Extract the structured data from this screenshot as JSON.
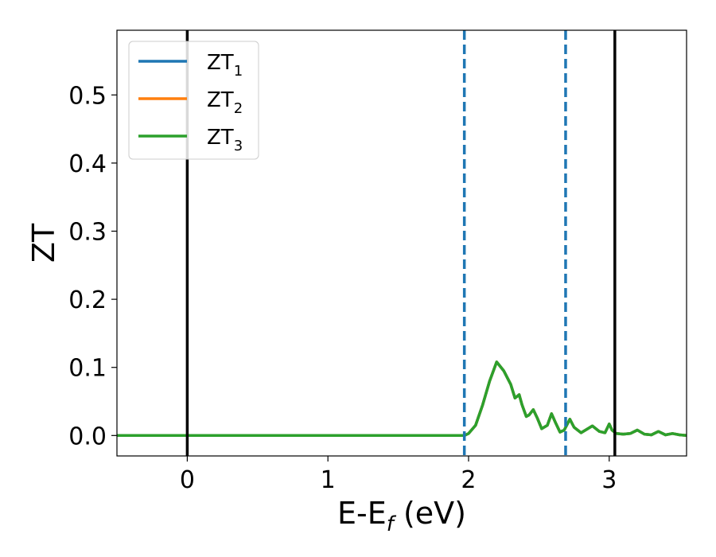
{
  "chart_data": {
    "type": "line",
    "title": "",
    "xlabel": "E-E",
    "xlabel_sub": "f",
    "xlabel_unit": " (eV)",
    "ylabel": "ZT",
    "xlim": [
      -0.5,
      3.55
    ],
    "ylim": [
      -0.03,
      0.595
    ],
    "xticks": [
      0,
      1,
      2,
      3
    ],
    "xtick_labels": [
      "0",
      "1",
      "2",
      "3"
    ],
    "yticks": [
      0.0,
      0.1,
      0.2,
      0.3,
      0.4,
      0.5
    ],
    "ytick_labels": [
      "0.0",
      "0.1",
      "0.2",
      "0.3",
      "0.4",
      "0.5"
    ],
    "grid": false,
    "legend_position": "top-left",
    "series": [
      {
        "name": "ZT",
        "name_sub": "1",
        "color": "#1f77b4",
        "x": [
          -0.5,
          0.0,
          1.0,
          1.9,
          1.97,
          2.0,
          2.05,
          2.1,
          2.15,
          2.2,
          2.25,
          2.3,
          2.33,
          2.36,
          2.38,
          2.41,
          2.43,
          2.46,
          2.49,
          2.52,
          2.56,
          2.59,
          2.62,
          2.65,
          2.68,
          2.72,
          2.75,
          2.8,
          2.88,
          2.93,
          2.97,
          3.0,
          3.02,
          3.05,
          3.1,
          3.15,
          3.2,
          3.25,
          3.3,
          3.35,
          3.4,
          3.45,
          3.5,
          3.55
        ],
        "y": [
          0.0,
          0.0,
          0.0,
          0.0,
          0.0,
          0.003,
          0.015,
          0.045,
          0.08,
          0.108,
          0.095,
          0.075,
          0.055,
          0.06,
          0.045,
          0.028,
          0.03,
          0.038,
          0.025,
          0.01,
          0.015,
          0.032,
          0.018,
          0.005,
          0.008,
          0.024,
          0.012,
          0.004,
          0.014,
          0.006,
          0.004,
          0.017,
          0.008,
          0.003,
          0.002,
          0.003,
          0.008,
          0.002,
          0.001,
          0.006,
          0.001,
          0.003,
          0.001,
          0.0
        ]
      },
      {
        "name": "ZT",
        "name_sub": "2",
        "color": "#ff7f0e",
        "x": [
          -0.5,
          0.0,
          1.0,
          1.9,
          1.97,
          2.0,
          2.05,
          2.1,
          2.15,
          2.2,
          2.25,
          2.3,
          2.33,
          2.36,
          2.38,
          2.41,
          2.43,
          2.46,
          2.49,
          2.52,
          2.56,
          2.59,
          2.62,
          2.65,
          2.68,
          2.72,
          2.75,
          2.8,
          2.88,
          2.93,
          2.97,
          3.0,
          3.02,
          3.05,
          3.1,
          3.15,
          3.2,
          3.25,
          3.3,
          3.35,
          3.4,
          3.45,
          3.5,
          3.55
        ],
        "y": [
          0.0,
          0.0,
          0.0,
          0.0,
          0.0,
          0.003,
          0.015,
          0.045,
          0.08,
          0.108,
          0.095,
          0.075,
          0.055,
          0.06,
          0.045,
          0.028,
          0.03,
          0.038,
          0.025,
          0.01,
          0.015,
          0.032,
          0.018,
          0.005,
          0.008,
          0.024,
          0.012,
          0.004,
          0.014,
          0.006,
          0.004,
          0.017,
          0.008,
          0.003,
          0.002,
          0.003,
          0.008,
          0.002,
          0.001,
          0.006,
          0.001,
          0.003,
          0.001,
          0.0
        ]
      },
      {
        "name": "ZT",
        "name_sub": "3",
        "color": "#2ca02c",
        "x": [
          -0.5,
          0.0,
          1.0,
          1.9,
          1.97,
          2.0,
          2.05,
          2.1,
          2.15,
          2.2,
          2.25,
          2.3,
          2.33,
          2.36,
          2.38,
          2.41,
          2.43,
          2.46,
          2.49,
          2.52,
          2.56,
          2.59,
          2.62,
          2.65,
          2.68,
          2.72,
          2.75,
          2.8,
          2.88,
          2.93,
          2.97,
          3.0,
          3.02,
          3.05,
          3.1,
          3.15,
          3.2,
          3.25,
          3.3,
          3.35,
          3.4,
          3.45,
          3.5,
          3.55
        ],
        "y": [
          0.0,
          0.0,
          0.0,
          0.0,
          0.0,
          0.003,
          0.015,
          0.045,
          0.08,
          0.108,
          0.095,
          0.075,
          0.055,
          0.06,
          0.045,
          0.028,
          0.03,
          0.038,
          0.025,
          0.01,
          0.015,
          0.032,
          0.018,
          0.005,
          0.008,
          0.024,
          0.012,
          0.004,
          0.014,
          0.006,
          0.004,
          0.017,
          0.008,
          0.003,
          0.002,
          0.003,
          0.008,
          0.002,
          0.001,
          0.006,
          0.001,
          0.003,
          0.001,
          0.0
        ]
      }
    ],
    "vlines": [
      {
        "x": 0.0,
        "color": "#000000",
        "style": "solid"
      },
      {
        "x": 3.04,
        "color": "#000000",
        "style": "solid"
      },
      {
        "x": 1.97,
        "color": "#1f77b4",
        "style": "dashed"
      },
      {
        "x": 2.69,
        "color": "#1f77b4",
        "style": "dashed"
      }
    ]
  }
}
